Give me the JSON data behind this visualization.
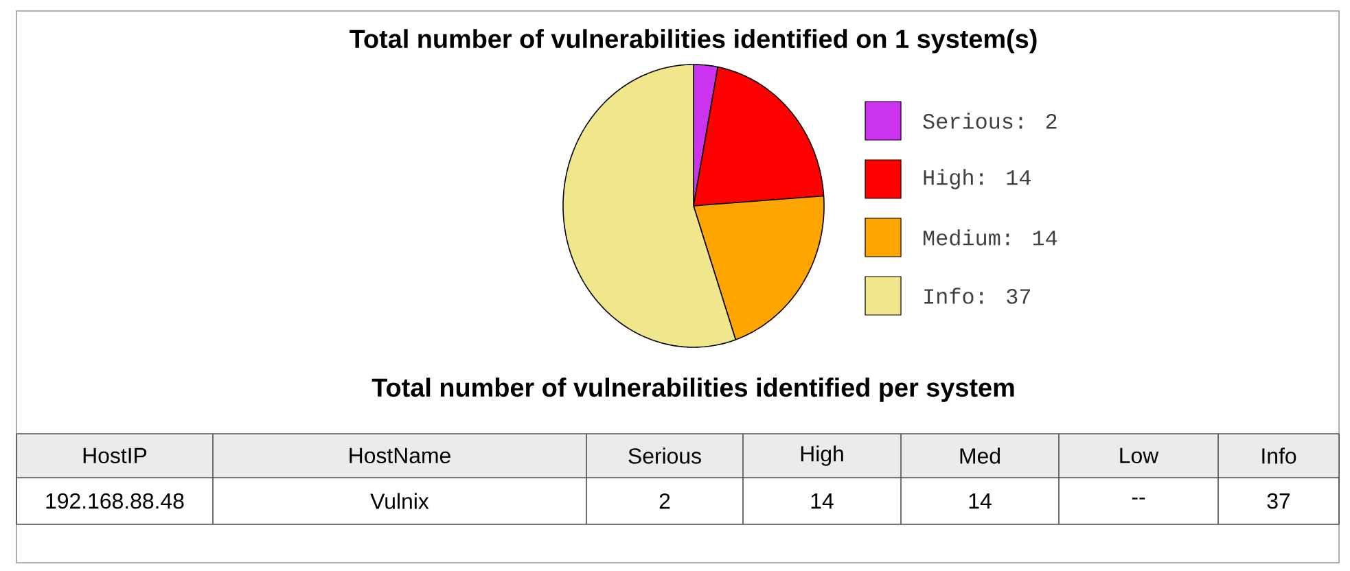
{
  "chart_data": [
    {
      "type": "pie",
      "title": "Total number of vulnerabilities identified on  1 system(s)",
      "categories": [
        "Serious: 2",
        "High: 14",
        "Medium: 14",
        "Info: 37"
      ],
      "values": [
        2,
        14,
        14,
        37
      ],
      "colors": [
        "#cc33ee",
        "#ff0000",
        "#ffa500",
        "#f0e68c"
      ],
      "legend": "right"
    },
    {
      "type": "other",
      "title": "Total number of vulnerabilities identified per system",
      "categories": [
        "HostIP",
        "HostName",
        "Serious",
        "High",
        "Med",
        "Low",
        "Info"
      ],
      "value_labels": [
        "192.168.88.48",
        "Vulnix",
        "2",
        "14",
        "14",
        "--",
        "37"
      ]
    }
  ]
}
